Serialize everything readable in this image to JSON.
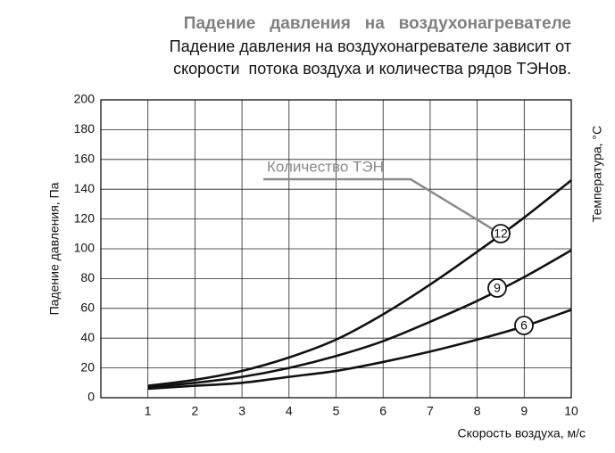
{
  "chart_data": {
    "type": "line",
    "title": "Падение   давления   на   воздухонагревателе",
    "subtitle_lines": [
      "Падение давления на воздухонагревателе зависит от",
      "скорости  потока воздуха и количества рядов ТЭНов."
    ],
    "x_label": "Скорость воздуха, м/с",
    "y_label": "Падение давления, Па",
    "y2_label": "Температура, °C",
    "annotation": "Количество ТЭН",
    "x": [
      1,
      2,
      3,
      4,
      5,
      6,
      7,
      8,
      9,
      10
    ],
    "series": [
      {
        "name": "12",
        "color": "#111111",
        "values": [
          8,
          12,
          18,
          27,
          39,
          56,
          76,
          98,
          121,
          146
        ]
      },
      {
        "name": "9",
        "color": "#111111",
        "values": [
          7,
          10,
          14,
          20,
          28,
          38,
          51,
          65,
          81,
          99
        ]
      },
      {
        "name": "6",
        "color": "#111111",
        "values": [
          6,
          8,
          10,
          14,
          18,
          24,
          31,
          39,
          48,
          59
        ]
      }
    ],
    "xlim": [
      0,
      10
    ],
    "xticks": [
      1,
      2,
      3,
      4,
      5,
      6,
      7,
      8,
      9,
      10
    ],
    "ylim": [
      0,
      200
    ],
    "yticks": [
      0,
      20,
      40,
      60,
      80,
      100,
      120,
      140,
      160,
      180,
      200
    ],
    "grid": true
  }
}
